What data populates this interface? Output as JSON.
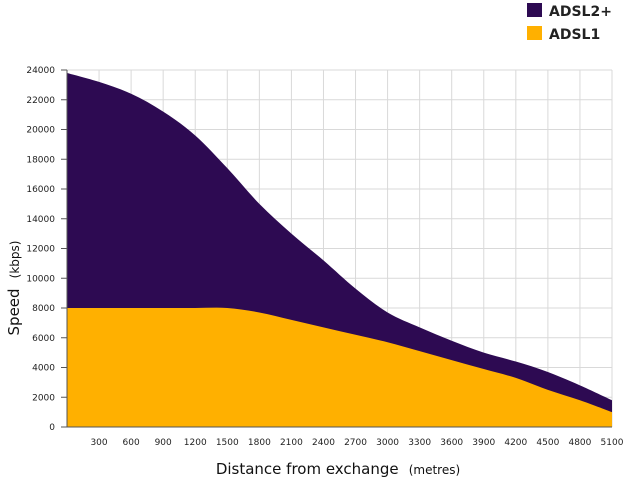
{
  "chart_data": {
    "type": "area",
    "title": "",
    "xlabel": "Distance from exchange",
    "xlabel_unit": "(metres)",
    "ylabel": "Speed",
    "ylabel_unit": "(kbps)",
    "xlim": [
      0,
      5100
    ],
    "ylim": [
      0,
      24000
    ],
    "x_ticks": [
      300,
      600,
      900,
      1200,
      1500,
      1800,
      2100,
      2400,
      2700,
      3000,
      3300,
      3600,
      3900,
      4200,
      4500,
      4800,
      5100
    ],
    "y_ticks": [
      0,
      2000,
      4000,
      6000,
      8000,
      10000,
      12000,
      14000,
      16000,
      18000,
      20000,
      22000,
      24000
    ],
    "grid": true,
    "legend_position": "top-right",
    "series": [
      {
        "name": "ADSL2+",
        "color": "#2d0a52",
        "x": [
          0,
          300,
          600,
          900,
          1200,
          1500,
          1800,
          2100,
          2400,
          2700,
          3000,
          3300,
          3600,
          3900,
          4200,
          4500,
          4800,
          5100
        ],
        "values": [
          23800,
          23200,
          22400,
          21200,
          19600,
          17400,
          15000,
          13000,
          11200,
          9300,
          7700,
          6700,
          5800,
          5000,
          4400,
          3700,
          2800,
          1800
        ]
      },
      {
        "name": "ADSL1",
        "color": "#ffb000",
        "x": [
          0,
          300,
          600,
          900,
          1200,
          1500,
          1800,
          2100,
          2400,
          2700,
          3000,
          3300,
          3600,
          3900,
          4200,
          4500,
          4800,
          5100
        ],
        "values": [
          8000,
          8000,
          8000,
          8000,
          8000,
          8000,
          7700,
          7200,
          6700,
          6200,
          5700,
          5100,
          4500,
          3900,
          3300,
          2500,
          1800,
          1000
        ]
      }
    ]
  }
}
